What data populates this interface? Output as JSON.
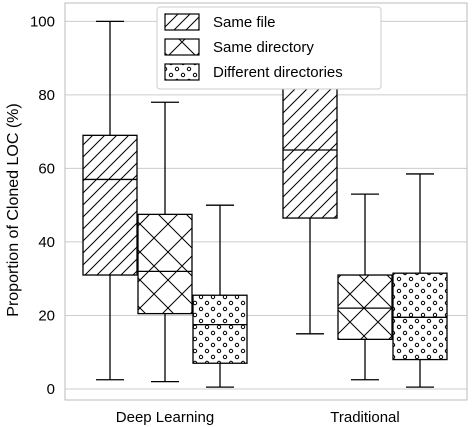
{
  "chart_data": {
    "type": "boxplot",
    "xlabel": "",
    "ylabel": "Proportion of Cloned LOC (%)",
    "ylim": [
      -3,
      105
    ],
    "y_ticks": [
      0,
      20,
      40,
      60,
      80,
      100
    ],
    "grid": "horizontal",
    "legend_position": "top-center",
    "categories": [
      "Deep Learning",
      "Traditional"
    ],
    "series": [
      {
        "name": "Same file",
        "pattern": "diagonal-hatch",
        "boxes": [
          {
            "category": "Deep Learning",
            "whisker_low": 2.5,
            "q1": 31,
            "median": 57,
            "q3": 69,
            "whisker_high": 100
          },
          {
            "category": "Traditional",
            "whisker_low": 15,
            "q1": 46.5,
            "median": 65,
            "q3": 100,
            "whisker_high": 100
          }
        ]
      },
      {
        "name": "Same directory",
        "pattern": "cross-hatch",
        "boxes": [
          {
            "category": "Deep Learning",
            "whisker_low": 2,
            "q1": 20.5,
            "median": 32,
            "q3": 47.5,
            "whisker_high": 78
          },
          {
            "category": "Traditional",
            "whisker_low": 2.5,
            "q1": 13.5,
            "median": 22,
            "q3": 31,
            "whisker_high": 53
          }
        ]
      },
      {
        "name": "Different directories",
        "pattern": "circles",
        "boxes": [
          {
            "category": "Deep Learning",
            "whisker_low": 0.5,
            "q1": 7,
            "median": 17.5,
            "q3": 25.5,
            "whisker_high": 50
          },
          {
            "category": "Traditional",
            "whisker_low": 0.5,
            "q1": 8,
            "median": 19.5,
            "q3": 31.5,
            "whisker_high": 58.5
          }
        ]
      }
    ]
  }
}
